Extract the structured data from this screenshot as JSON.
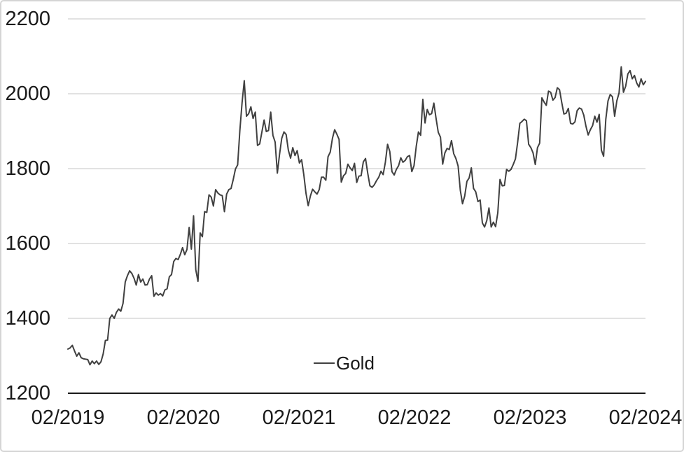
{
  "chart_data": {
    "type": "line",
    "title": "",
    "grid": "horizontal",
    "legend_position": "bottom-center-inside-plot",
    "x_tick_labels": [
      "02/2019",
      "02/2020",
      "02/2021",
      "02/2022",
      "02/2023",
      "02/2024"
    ],
    "y_tick_values": [
      2200,
      2000,
      1800,
      1600,
      1400,
      1200
    ],
    "ylim": [
      1200,
      2200
    ],
    "frequency_hint": "weekly",
    "colors": {
      "line": "#404040",
      "gridline": "#d0d0d0",
      "axis_line": "#1a1a1a",
      "text": "#1a1a1a"
    },
    "series": [
      {
        "name": "Gold",
        "color": "#404040",
        "values": [
          1318,
          1321,
          1328,
          1313,
          1299,
          1308,
          1295,
          1292,
          1291,
          1290,
          1276,
          1286,
          1279,
          1286,
          1277,
          1284,
          1305,
          1341,
          1342,
          1400,
          1409,
          1400,
          1416,
          1425,
          1419,
          1440,
          1497,
          1514,
          1527,
          1520,
          1507,
          1489,
          1517,
          1497,
          1505,
          1489,
          1490,
          1505,
          1514,
          1459,
          1468,
          1462,
          1466,
          1460,
          1476,
          1479,
          1511,
          1517,
          1552,
          1560,
          1557,
          1571,
          1589,
          1570,
          1584,
          1643,
          1585,
          1674,
          1530,
          1499,
          1628,
          1618,
          1685,
          1683,
          1730,
          1724,
          1700,
          1744,
          1735,
          1730,
          1728,
          1685,
          1732,
          1744,
          1747,
          1771,
          1799,
          1810,
          1902,
          1976,
          2035,
          1940,
          1947,
          1965,
          1934,
          1951,
          1862,
          1866,
          1898,
          1930,
          1899,
          1902,
          1951,
          1889,
          1871,
          1788,
          1838,
          1881,
          1898,
          1891,
          1849,
          1828,
          1856,
          1835,
          1848,
          1815,
          1824,
          1784,
          1734,
          1701,
          1727,
          1745,
          1738,
          1732,
          1744,
          1777,
          1777,
          1769,
          1832,
          1844,
          1881,
          1904,
          1892,
          1878,
          1764,
          1781,
          1787,
          1812,
          1802,
          1795,
          1814,
          1763,
          1780,
          1781,
          1818,
          1827,
          1788,
          1754,
          1750,
          1757,
          1768,
          1777,
          1793,
          1784,
          1817,
          1865,
          1846,
          1792,
          1783,
          1798,
          1808,
          1829,
          1817,
          1822,
          1832,
          1835,
          1792,
          1808,
          1859,
          1898,
          1889,
          1985,
          1922,
          1958,
          1944,
          1947,
          1975,
          1934,
          1897,
          1884,
          1812,
          1842,
          1854,
          1851,
          1875,
          1840,
          1827,
          1807,
          1742,
          1706,
          1727,
          1766,
          1775,
          1802,
          1747,
          1738,
          1712,
          1716,
          1655,
          1644,
          1661,
          1695,
          1644,
          1657,
          1645,
          1682,
          1771,
          1754,
          1755,
          1798,
          1793,
          1798,
          1811,
          1826,
          1870,
          1921,
          1926,
          1932,
          1928,
          1865,
          1856,
          1842,
          1811,
          1856,
          1868,
          1989,
          1978,
          1969,
          2007,
          2004,
          1983,
          1990,
          2016,
          2011,
          1977,
          1946,
          1948,
          1961,
          1921,
          1919,
          1925,
          1955,
          1962,
          1959,
          1943,
          1913,
          1890,
          1904,
          1915,
          1940,
          1924,
          1945,
          1849,
          1833,
          1932,
          1981,
          1998,
          1992,
          1940,
          1981,
          2002,
          2072,
          2004,
          2020,
          2053,
          2062,
          2040,
          2049,
          2029,
          2018,
          2040,
          2024,
          2033
        ]
      }
    ]
  },
  "legend": {
    "label": "Gold"
  }
}
